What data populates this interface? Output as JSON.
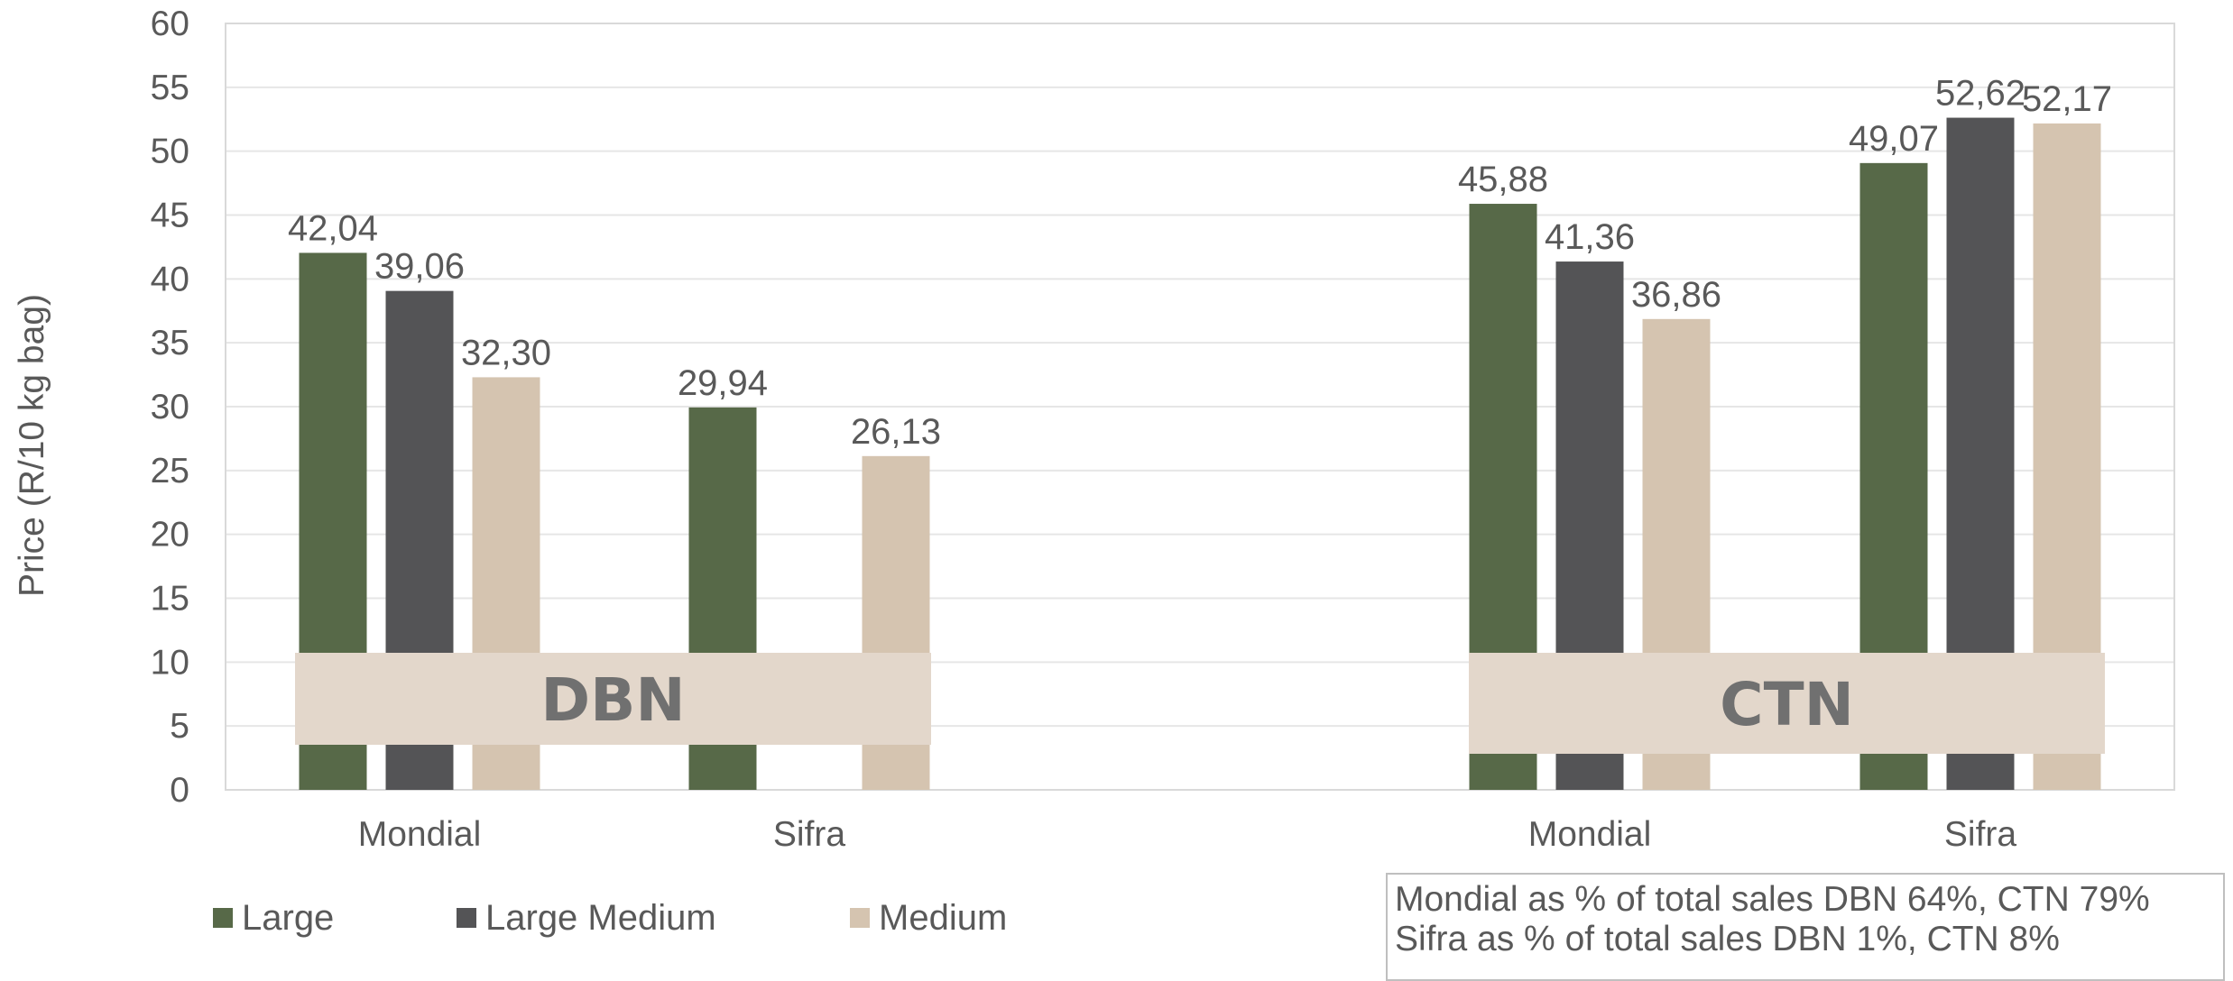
{
  "chart_data": {
    "type": "bar",
    "ylabel": "Price (R/10 kg bag)",
    "ylim": [
      0,
      60
    ],
    "yticks": [
      0,
      5,
      10,
      15,
      20,
      25,
      30,
      35,
      40,
      45,
      50,
      55,
      60
    ],
    "grid": true,
    "legend_position": "bottom-left",
    "series_names": [
      "Large",
      "Large Medium",
      "Medium"
    ],
    "series_colors": [
      "#576948",
      "#545456",
      "#d5c4b0"
    ],
    "groups": [
      {
        "label": "DBN",
        "categories": [
          {
            "name": "Mondial",
            "values": [
              42.04,
              39.06,
              32.3
            ],
            "labels": [
              "42,04",
              "39,06",
              "32,30"
            ]
          },
          {
            "name": "Sifra",
            "values": [
              29.94,
              null,
              26.13
            ],
            "labels": [
              "29,94",
              "",
              "26,13"
            ]
          }
        ]
      },
      {
        "label": "CTN",
        "categories": [
          {
            "name": "Mondial",
            "values": [
              45.88,
              41.36,
              36.86
            ],
            "labels": [
              "45,88",
              "41,36",
              "36,86"
            ]
          },
          {
            "name": "Sifra",
            "values": [
              49.07,
              52.62,
              52.17
            ],
            "labels": [
              "49,07",
              "52,62",
              "52,17"
            ]
          }
        ]
      }
    ]
  },
  "notes": [
    "Mondial as % of total sales DBN 64%, CTN 79%",
    "Sifra as % of total sales DBN 1%, CTN 8%"
  ]
}
